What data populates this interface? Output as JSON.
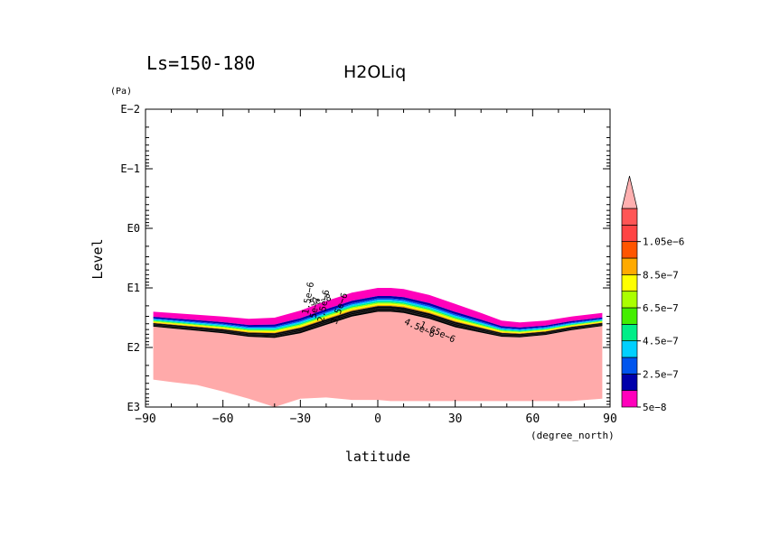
{
  "chart_data": {
    "type": "contour",
    "title": "H2OLiq",
    "subtitle": "Ls=150-180",
    "xlabel": "latitude",
    "xunit": "(degree_north)",
    "ylabel": "Level",
    "yunit": "(Pa)",
    "xlim": [
      -90,
      90
    ],
    "ylim_log10": [
      -2,
      3
    ],
    "x_ticks": [
      -90,
      -60,
      -30,
      0,
      30,
      60,
      90
    ],
    "x_tick_labels": [
      "−90",
      "−60",
      "−30",
      "0",
      "30",
      "60",
      "90"
    ],
    "y_ticks_log10": [
      -2,
      -1,
      0,
      1,
      2,
      3
    ],
    "y_tick_labels": [
      "E−2",
      "E−1",
      "E0",
      "E1",
      "E2",
      "E3"
    ],
    "data_lat": [
      -87,
      -80,
      -70,
      -60,
      -50,
      -40,
      -30,
      -20,
      -10,
      0,
      5,
      10,
      20,
      30,
      40,
      48,
      55,
      65,
      75,
      87
    ],
    "cloud_top_log10": [
      1.4,
      1.42,
      1.45,
      1.48,
      1.52,
      1.5,
      1.38,
      1.22,
      1.08,
      1.0,
      1.0,
      1.02,
      1.12,
      1.27,
      1.42,
      1.55,
      1.58,
      1.55,
      1.48,
      1.42
    ],
    "cloud_thickness_log10": [
      0.25,
      0.26,
      0.27,
      0.28,
      0.3,
      0.34,
      0.38,
      0.4,
      0.4,
      0.4,
      0.4,
      0.4,
      0.4,
      0.39,
      0.33,
      0.27,
      0.25,
      0.24,
      0.23,
      0.22
    ],
    "ground_log10": [
      2.54,
      2.58,
      2.63,
      2.74,
      2.86,
      3.0,
      2.86,
      2.84,
      2.88,
      2.88,
      2.9,
      2.9,
      2.9,
      2.9,
      2.9,
      2.9,
      2.9,
      2.9,
      2.9,
      2.86
    ],
    "contour_labels": [
      "5e−8",
      "1.5e−6",
      "5e−7",
      "2.5e−6",
      "3.5e−6",
      "4.5e−6",
      "1.65e−6"
    ],
    "colorbar": {
      "levels": [
        "5e−8",
        "2.5e−7",
        "4.5e−7",
        "6.5e−7",
        "8.5e−7",
        "1.05e−6"
      ],
      "colors": [
        "#ff00bb",
        "#0000aa",
        "#0055ee",
        "#00d0ff",
        "#00ee88",
        "#44ee00",
        "#aaff00",
        "#ffff00",
        "#ffaa00",
        "#ff5500",
        "#ff4444",
        "#ff5555",
        "#ffb0b0"
      ]
    },
    "masked_color": "#ffaaaa",
    "cloud_layer_colors": [
      "#ff00bb",
      "#0000aa",
      "#0055ee",
      "#00d0ff",
      "#00ee88",
      "#aaff00",
      "#ffff00",
      "#ffaa00",
      "#000000",
      "#000000",
      "#000000"
    ]
  }
}
